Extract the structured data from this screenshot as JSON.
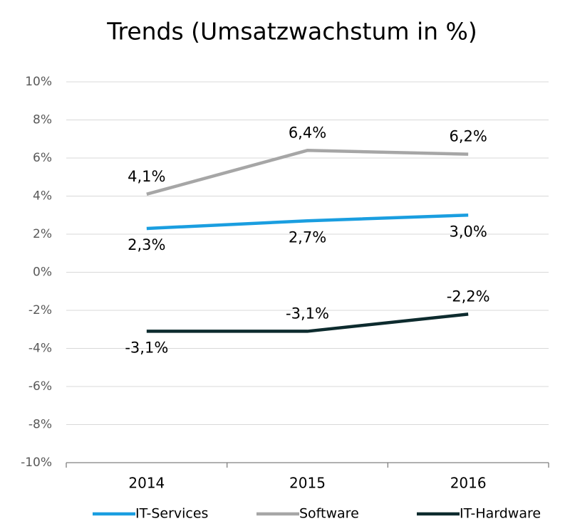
{
  "chart_data": {
    "type": "line",
    "title": "Trends (Umsatzwachstum in %)",
    "categories": [
      "2014",
      "2015",
      "2016"
    ],
    "series": [
      {
        "name": "IT-Services",
        "color": "#1a9ee0",
        "values": [
          2.3,
          2.7,
          3.0
        ],
        "value_labels": [
          "2,3%",
          "2,7%",
          "3,0%"
        ]
      },
      {
        "name": "Software",
        "color": "#a6a6a6",
        "values": [
          4.1,
          6.4,
          6.2
        ],
        "value_labels": [
          "4,1%",
          "6,4%",
          "6,2%"
        ]
      },
      {
        "name": "IT-Hardware",
        "color": "#0d2b2e",
        "values": [
          -3.1,
          -3.1,
          -2.2
        ],
        "value_labels": [
          "-3,1%",
          "-3,1%",
          "-2,2%"
        ]
      }
    ],
    "ylim": [
      -10,
      10
    ],
    "yticks": [
      {
        "value": -10,
        "label": "-10%"
      },
      {
        "value": -8,
        "label": "-8%"
      },
      {
        "value": -6,
        "label": "-6%"
      },
      {
        "value": -4,
        "label": "-4%"
      },
      {
        "value": -2,
        "label": "-2%"
      },
      {
        "value": 0,
        "label": "0%"
      },
      {
        "value": 2,
        "label": "2%"
      },
      {
        "value": 4,
        "label": "4%"
      },
      {
        "value": 6,
        "label": "6%"
      },
      {
        "value": 8,
        "label": "8%"
      },
      {
        "value": 10,
        "label": "10%"
      }
    ],
    "grid": true,
    "legend": "bottom"
  }
}
